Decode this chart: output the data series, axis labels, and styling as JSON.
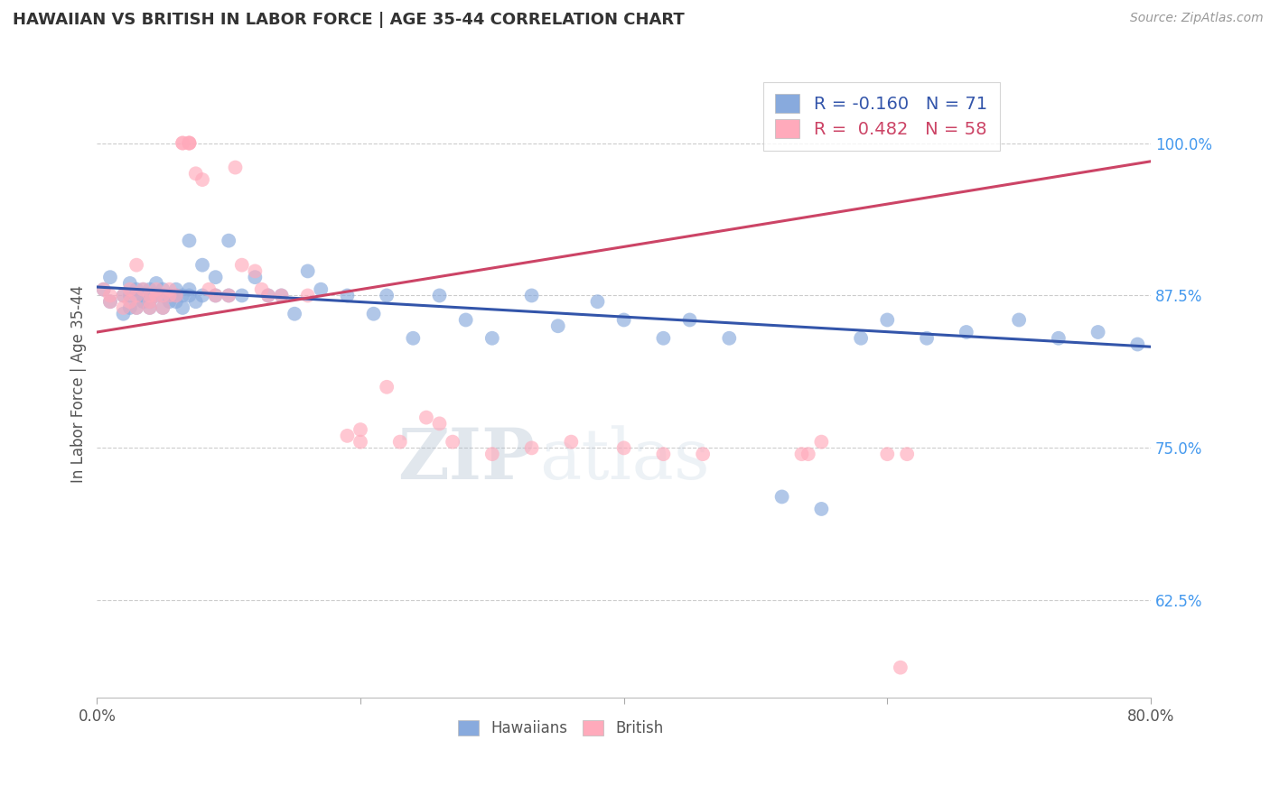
{
  "title": "HAWAIIAN VS BRITISH IN LABOR FORCE | AGE 35-44 CORRELATION CHART",
  "source": "Source: ZipAtlas.com",
  "ylabel": "In Labor Force | Age 35-44",
  "legend_blue_label": "R = -0.160   N = 71",
  "legend_pink_label": "R =  0.482   N = 58",
  "legend_hawaiians": "Hawaiians",
  "legend_british": "British",
  "blue_color": "#88AADD",
  "pink_color": "#FFAABB",
  "blue_line_color": "#3355AA",
  "pink_line_color": "#CC4466",
  "watermark_zip": "ZIP",
  "watermark_atlas": "atlas",
  "background_color": "#FFFFFF",
  "grid_color": "#CCCCCC",
  "xlim": [
    0.0,
    0.8
  ],
  "ylim": [
    0.545,
    1.06
  ],
  "ytick_positions": [
    0.625,
    0.75,
    0.875,
    1.0
  ],
  "ytick_labels": [
    "62.5%",
    "75.0%",
    "87.5%",
    "100.0%"
  ],
  "xtick_positions": [
    0.0,
    0.2,
    0.4,
    0.6,
    0.8
  ],
  "xtick_labels": [
    "0.0%",
    "",
    "",
    "",
    "80.0%"
  ],
  "blue_trend_x": [
    0.0,
    0.8
  ],
  "blue_trend_y": [
    0.882,
    0.833
  ],
  "pink_trend_x": [
    0.0,
    0.8
  ],
  "pink_trend_y": [
    0.845,
    0.985
  ],
  "hawaiians_x": [
    0.005,
    0.01,
    0.01,
    0.02,
    0.02,
    0.025,
    0.025,
    0.025,
    0.03,
    0.03,
    0.03,
    0.035,
    0.035,
    0.035,
    0.04,
    0.04,
    0.04,
    0.04,
    0.045,
    0.045,
    0.05,
    0.05,
    0.05,
    0.055,
    0.055,
    0.06,
    0.06,
    0.06,
    0.065,
    0.065,
    0.07,
    0.07,
    0.07,
    0.075,
    0.08,
    0.08,
    0.09,
    0.09,
    0.1,
    0.1,
    0.11,
    0.12,
    0.13,
    0.14,
    0.15,
    0.16,
    0.17,
    0.19,
    0.21,
    0.22,
    0.24,
    0.26,
    0.28,
    0.3,
    0.33,
    0.35,
    0.38,
    0.4,
    0.43,
    0.45,
    0.48,
    0.52,
    0.55,
    0.58,
    0.6,
    0.63,
    0.66,
    0.7,
    0.73,
    0.76,
    0.79
  ],
  "hawaiians_y": [
    0.88,
    0.87,
    0.89,
    0.875,
    0.86,
    0.885,
    0.875,
    0.865,
    0.88,
    0.875,
    0.865,
    0.88,
    0.87,
    0.875,
    0.88,
    0.875,
    0.87,
    0.865,
    0.885,
    0.875,
    0.875,
    0.865,
    0.88,
    0.875,
    0.87,
    0.875,
    0.87,
    0.88,
    0.875,
    0.865,
    0.92,
    0.875,
    0.88,
    0.87,
    0.9,
    0.875,
    0.875,
    0.89,
    0.875,
    0.92,
    0.875,
    0.89,
    0.875,
    0.875,
    0.86,
    0.895,
    0.88,
    0.875,
    0.86,
    0.875,
    0.84,
    0.875,
    0.855,
    0.84,
    0.875,
    0.85,
    0.87,
    0.855,
    0.84,
    0.855,
    0.84,
    0.71,
    0.7,
    0.84,
    0.855,
    0.84,
    0.845,
    0.855,
    0.84,
    0.845,
    0.835
  ],
  "british_x": [
    0.005,
    0.01,
    0.01,
    0.02,
    0.02,
    0.025,
    0.025,
    0.03,
    0.03,
    0.03,
    0.035,
    0.04,
    0.04,
    0.04,
    0.045,
    0.045,
    0.05,
    0.05,
    0.055,
    0.055,
    0.06,
    0.065,
    0.065,
    0.07,
    0.07,
    0.07,
    0.075,
    0.08,
    0.085,
    0.09,
    0.1,
    0.105,
    0.11,
    0.12,
    0.125,
    0.13,
    0.14,
    0.16,
    0.19,
    0.2,
    0.2,
    0.22,
    0.23,
    0.25,
    0.26,
    0.27,
    0.3,
    0.33,
    0.36,
    0.4,
    0.43,
    0.46,
    0.535,
    0.54,
    0.6,
    0.61,
    0.615,
    0.55
  ],
  "british_y": [
    0.88,
    0.875,
    0.87,
    0.875,
    0.865,
    0.88,
    0.87,
    0.9,
    0.875,
    0.865,
    0.88,
    0.875,
    0.87,
    0.865,
    0.88,
    0.875,
    0.875,
    0.865,
    0.88,
    0.875,
    0.875,
    1.0,
    1.0,
    1.0,
    1.0,
    1.0,
    0.975,
    0.97,
    0.88,
    0.875,
    0.875,
    0.98,
    0.9,
    0.895,
    0.88,
    0.875,
    0.875,
    0.875,
    0.76,
    0.755,
    0.765,
    0.8,
    0.755,
    0.775,
    0.77,
    0.755,
    0.745,
    0.75,
    0.755,
    0.75,
    0.745,
    0.745,
    0.745,
    0.745,
    0.745,
    0.57,
    0.745,
    0.755
  ]
}
